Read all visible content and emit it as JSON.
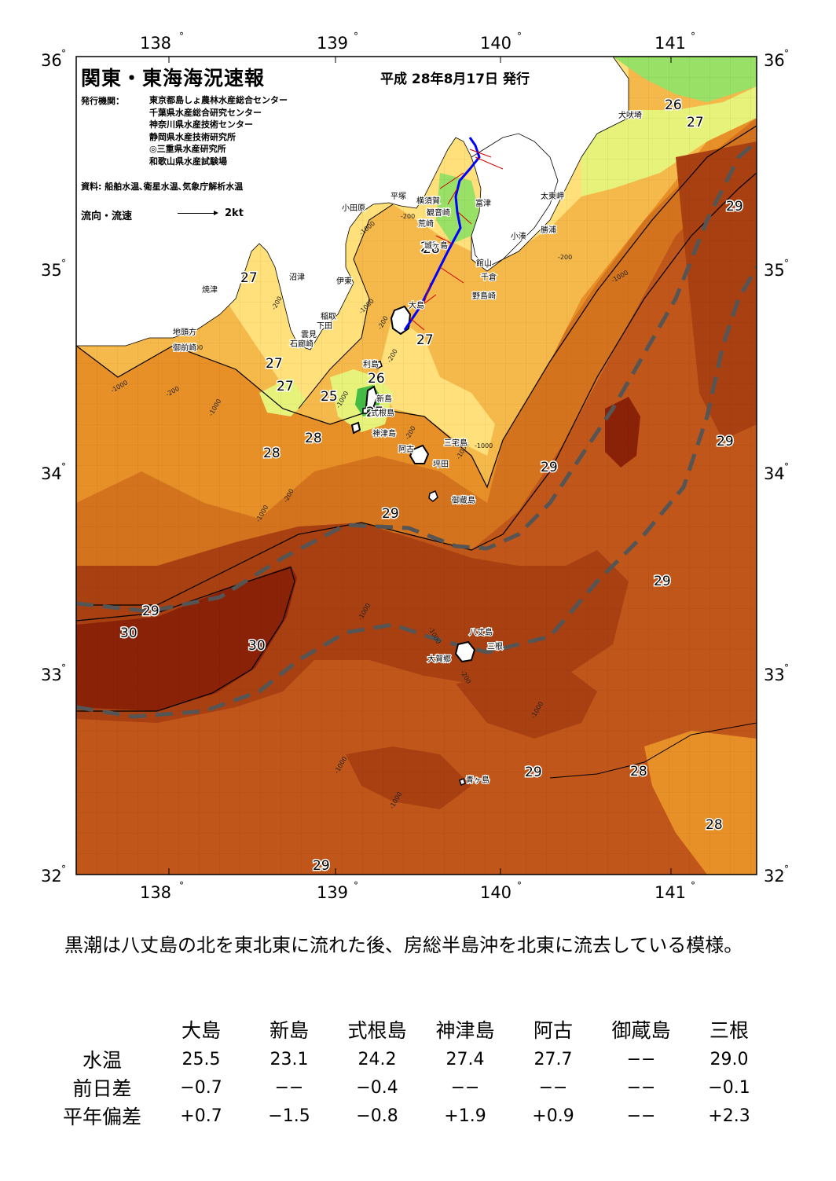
{
  "header": {
    "title": "関東・東海海況速報",
    "issue_date": "平成 28年8月17日 発行",
    "publisher_label": "発行機関：",
    "publishers": [
      "東京都島しょ農林水産総合センター",
      "千葉県水産総合研究センター",
      "神奈川県水産技術センター",
      "静岡県水産技術研究所",
      "◎三重県水産研究所",
      "和歌山県水産試験場"
    ],
    "data_source": "資料: 船舶水温､衛星水温､気象庁解析水温",
    "legend_flow_label": "流向・流速",
    "legend_scale": "2kt"
  },
  "map": {
    "lon_labels": [
      "138",
      "139",
      "140",
      "141"
    ],
    "lat_labels": [
      "36",
      "35",
      "34",
      "33",
      "32"
    ],
    "degree_symbol": "°",
    "isotherm_labels": [
      "26",
      "27",
      "29",
      "27",
      "26",
      "27",
      "27",
      "27",
      "25",
      "26",
      "28",
      "28",
      "29",
      "29",
      "29",
      "29",
      "29",
      "30",
      "30",
      "29",
      "28",
      "28",
      "29",
      "27",
      "28"
    ],
    "depth_labels": [
      "-200",
      "-1000",
      "-200",
      "-1000",
      "-200",
      "-1000",
      "-200",
      "-1000",
      "-200",
      "-1000",
      "-1000",
      "-200",
      "-1000",
      "-200",
      "-1000",
      "-1000",
      "-1000",
      "-1000",
      "-200",
      "-1000",
      "-200",
      "-1000",
      "-200",
      "-1000"
    ],
    "place_names": [
      "犬吠埼",
      "太東岬",
      "勝浦",
      "小湊",
      "館山",
      "千倉",
      "野島崎",
      "富津",
      "観音崎",
      "荒崎",
      "城ヶ島",
      "横須賀",
      "平塚",
      "小田原",
      "大島",
      "利島",
      "新島",
      "式根島",
      "神津島",
      "三宅島",
      "阿古",
      "坪田",
      "御蔵島",
      "八丈島",
      "三根",
      "大賀郷",
      "青ヶ島",
      "沼津",
      "伊東",
      "焼津",
      "稲取",
      "下田",
      "雲見",
      "石廊崎",
      "地頭方",
      "御前崎"
    ],
    "colors": {
      "t25": "#44bb44",
      "t26": "#99e066",
      "t26b": "#e6f27a",
      "t27": "#ffe07a",
      "t27b": "#f5b84a",
      "t28": "#e89028",
      "t28b": "#d4731e",
      "t29": "#c0561a",
      "t29b": "#a84012",
      "t30": "#8a2208",
      "land": "#ffffff",
      "kuroshio_axis": "#555555",
      "flow_vector": "#0000ff"
    }
  },
  "summary": "黒潮は八丈島の北を東北東に流れた後、房総半島沖を北東に流去している模様。",
  "table": {
    "columns": [
      "大島",
      "新島",
      "式根島",
      "神津島",
      "阿古",
      "御蔵島",
      "三根"
    ],
    "rows": [
      {
        "label": "水温",
        "values": [
          "25.5",
          "23.1",
          "24.2",
          "27.4",
          "27.7",
          "−−",
          "29.0"
        ]
      },
      {
        "label": "前日差",
        "values": [
          "−0.7",
          "−−",
          "−0.4",
          "−−",
          "−−",
          "−−",
          "−0.1"
        ]
      },
      {
        "label": "平年偏差",
        "values": [
          "+0.7",
          "−1.5",
          "−0.8",
          "+1.9",
          "+0.9",
          "−−",
          "+2.3"
        ]
      }
    ]
  }
}
